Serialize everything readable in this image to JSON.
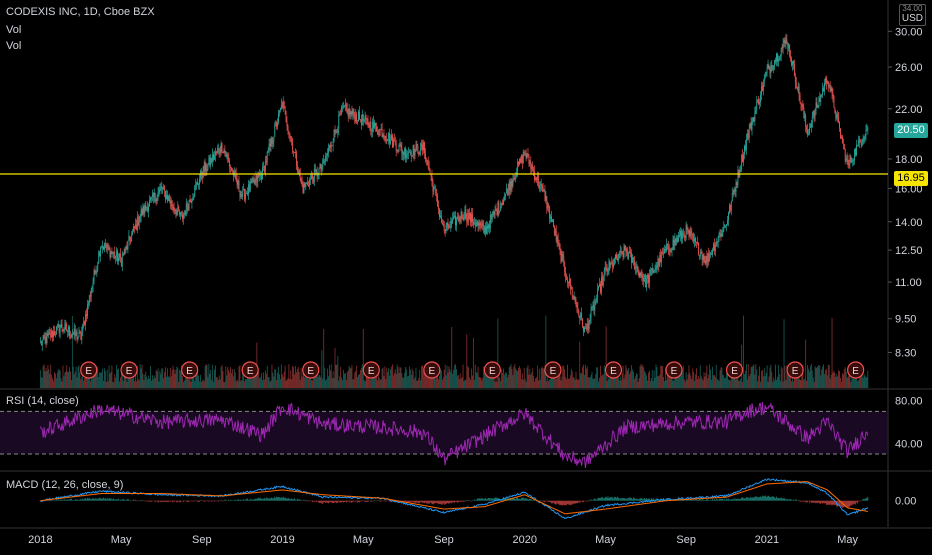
{
  "header": {
    "symbol_line": "CODEXIS INC, 1D, Cboe BZX",
    "vol_line_1": "Vol",
    "vol_line_2": "Vol",
    "currency_top": "34.00",
    "currency": "USD"
  },
  "indicators": {
    "rsi_title": "RSI (14, close)",
    "macd_title": "MACD (12, 26, close, 9)"
  },
  "price_tags": {
    "last_price": "20.50",
    "line_price": "16.95"
  },
  "colors": {
    "up": "#26a69a",
    "down": "#ef5350",
    "hline": "#f5e500",
    "rsi": "#9c27b0",
    "macd": "#2196f3",
    "signal": "#ff6d00",
    "earnings": "#ef5350"
  },
  "chart_data": {
    "type": "candlestick",
    "scale": "log",
    "price_ticks": [
      "8.30",
      "9.50",
      "11.00",
      "12.50",
      "14.00",
      "16.00",
      "18.00",
      "22.00",
      "26.00",
      "30.00"
    ],
    "x_labels": [
      "2018",
      "May",
      "Sep",
      "2019",
      "May",
      "Sep",
      "2020",
      "May",
      "Sep",
      "2021",
      "May"
    ],
    "horizontal_line": 16.95,
    "last_price": 20.5,
    "price_path": [
      [
        "2018-01",
        8.6
      ],
      [
        "2018-02",
        9.2
      ],
      [
        "2018-03",
        8.8
      ],
      [
        "2018-04",
        12.8
      ],
      [
        "2018-05",
        12.0
      ],
      [
        "2018-06",
        14.5
      ],
      [
        "2018-07",
        16.0
      ],
      [
        "2018-08",
        14.2
      ],
      [
        "2018-09",
        17.0
      ],
      [
        "2018-10",
        19.0
      ],
      [
        "2018-11",
        15.5
      ],
      [
        "2018-12",
        17.0
      ],
      [
        "2019-01",
        22.5
      ],
      [
        "2019-02",
        16.0
      ],
      [
        "2019-03",
        17.5
      ],
      [
        "2019-04",
        22.0
      ],
      [
        "2019-05",
        21.0
      ],
      [
        "2019-06",
        20.0
      ],
      [
        "2019-07",
        18.5
      ],
      [
        "2019-08",
        18.8
      ],
      [
        "2019-09",
        13.5
      ],
      [
        "2019-10",
        14.5
      ],
      [
        "2019-11",
        13.5
      ],
      [
        "2019-12",
        15.5
      ],
      [
        "2020-01",
        18.5
      ],
      [
        "2020-02",
        15.5
      ],
      [
        "2020-03",
        11.5
      ],
      [
        "2020-04",
        9.0
      ],
      [
        "2020-05",
        11.5
      ],
      [
        "2020-06",
        12.5
      ],
      [
        "2020-07",
        11.0
      ],
      [
        "2020-08",
        12.5
      ],
      [
        "2020-09",
        13.5
      ],
      [
        "2020-10",
        12.0
      ],
      [
        "2020-11",
        14.0
      ],
      [
        "2020-12",
        19.5
      ],
      [
        "2021-01",
        25.5
      ],
      [
        "2021-02",
        29.0
      ],
      [
        "2021-03",
        20.0
      ],
      [
        "2021-04",
        25.0
      ],
      [
        "2021-05",
        17.5
      ],
      [
        "2021-06",
        20.5
      ]
    ],
    "earnings_marker": "E",
    "earnings_dates": [
      "2018-03",
      "2018-05",
      "2018-08",
      "2018-11",
      "2019-02",
      "2019-05",
      "2019-08",
      "2019-11",
      "2020-02",
      "2020-05",
      "2020-08",
      "2020-11",
      "2021-02",
      "2021-05"
    ],
    "rsi": {
      "ticks": [
        "80.00",
        "40.00"
      ],
      "bands": [
        70,
        30
      ],
      "path": [
        [
          "2018-01",
          50
        ],
        [
          "2018-04",
          72
        ],
        [
          "2018-07",
          60
        ],
        [
          "2018-10",
          62
        ],
        [
          "2018-12",
          48
        ],
        [
          "2019-01",
          75
        ],
        [
          "2019-03",
          58
        ],
        [
          "2019-06",
          55
        ],
        [
          "2019-08",
          50
        ],
        [
          "2019-09",
          25
        ],
        [
          "2019-12",
          58
        ],
        [
          "2020-01",
          68
        ],
        [
          "2020-03",
          28
        ],
        [
          "2020-04",
          22
        ],
        [
          "2020-06",
          55
        ],
        [
          "2020-09",
          60
        ],
        [
          "2020-11",
          60
        ],
        [
          "2020-12",
          70
        ],
        [
          "2021-01",
          74
        ],
        [
          "2021-03",
          45
        ],
        [
          "2021-04",
          60
        ],
        [
          "2021-05",
          32
        ],
        [
          "2021-06",
          52
        ]
      ]
    },
    "macd": {
      "ticks": [
        "0.00"
      ],
      "macd_path": [
        [
          "2018-01",
          0.0
        ],
        [
          "2018-04",
          0.8
        ],
        [
          "2018-07",
          0.5
        ],
        [
          "2018-10",
          0.4
        ],
        [
          "2019-01",
          1.2
        ],
        [
          "2019-03",
          0.3
        ],
        [
          "2019-06",
          0.2
        ],
        [
          "2019-09",
          -1.0
        ],
        [
          "2019-11",
          -0.3
        ],
        [
          "2020-01",
          0.7
        ],
        [
          "2020-03",
          -1.5
        ],
        [
          "2020-05",
          -0.4
        ],
        [
          "2020-08",
          0.1
        ],
        [
          "2020-11",
          0.4
        ],
        [
          "2021-01",
          1.8
        ],
        [
          "2021-03",
          1.5
        ],
        [
          "2021-04",
          0.6
        ],
        [
          "2021-05",
          -1.2
        ],
        [
          "2021-06",
          -0.6
        ]
      ],
      "signal_path": [
        [
          "2018-01",
          0.0
        ],
        [
          "2018-04",
          0.6
        ],
        [
          "2018-07",
          0.6
        ],
        [
          "2018-10",
          0.4
        ],
        [
          "2019-01",
          0.9
        ],
        [
          "2019-03",
          0.5
        ],
        [
          "2019-06",
          0.2
        ],
        [
          "2019-09",
          -0.7
        ],
        [
          "2019-11",
          -0.5
        ],
        [
          "2020-01",
          0.5
        ],
        [
          "2020-03",
          -1.1
        ],
        [
          "2020-05",
          -0.7
        ],
        [
          "2020-08",
          0.0
        ],
        [
          "2020-11",
          0.3
        ],
        [
          "2021-01",
          1.4
        ],
        [
          "2021-03",
          1.6
        ],
        [
          "2021-04",
          0.9
        ],
        [
          "2021-05",
          -0.6
        ],
        [
          "2021-06",
          -0.9
        ]
      ]
    }
  }
}
